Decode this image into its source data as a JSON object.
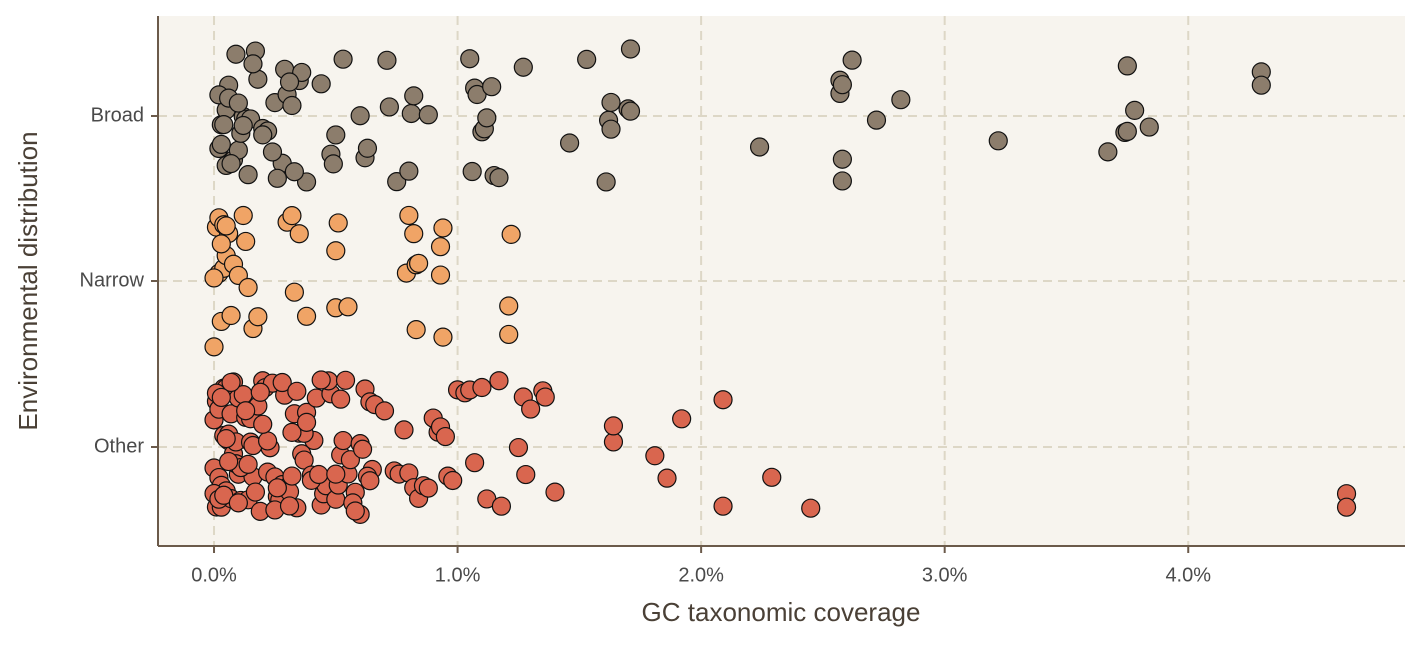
{
  "chart_data": {
    "type": "scatter",
    "x_label": "GC taxonomic coverage",
    "y_label": "Environmental distribution",
    "categories": [
      "Broad",
      "Narrow",
      "Other"
    ],
    "xlim": [
      -0.23,
      4.89
    ],
    "xticks": [
      {
        "value": 0,
        "label": "0.0%"
      },
      {
        "value": 1,
        "label": "1.0%"
      },
      {
        "value": 2,
        "label": "2.0%"
      },
      {
        "value": 3,
        "label": "3.0%"
      },
      {
        "value": 4,
        "label": "4.0%"
      }
    ],
    "grid": true,
    "series": [
      {
        "color": "#8c7d6c",
        "values": [
          0.02,
          0.03,
          0.05,
          0.06,
          0.08,
          0.1,
          0.12,
          0.13,
          0.15,
          0.17,
          0.2,
          0.22,
          0.25,
          0.28,
          0.3,
          0.32,
          0.35,
          0.38,
          0.03,
          0.05,
          0.07,
          0.09,
          0.11,
          0.14,
          0.18,
          0.24,
          0.29,
          0.33,
          0.36,
          0.02,
          0.04,
          0.06,
          0.1,
          0.12,
          0.16,
          0.2,
          0.26,
          0.31,
          0.44,
          0.48,
          0.49,
          0.5,
          0.53,
          0.6,
          0.62,
          0.63,
          0.71,
          0.72,
          0.75,
          0.8,
          0.81,
          0.82,
          0.88,
          1.05,
          1.06,
          1.07,
          1.08,
          1.1,
          1.11,
          1.12,
          1.14,
          1.15,
          1.17,
          1.27,
          1.46,
          1.53,
          1.61,
          1.62,
          1.63,
          1.63,
          1.7,
          1.71,
          1.71,
          2.24,
          2.57,
          2.57,
          2.58,
          2.58,
          2.58,
          2.62,
          2.72,
          2.82,
          3.22,
          3.67,
          3.74,
          3.75,
          3.75,
          3.78,
          3.84,
          4.3,
          4.3
        ]
      },
      {
        "color": "#f0a466",
        "values": [
          0.0,
          0.01,
          0.02,
          0.03,
          0.04,
          0.05,
          0.06,
          0.08,
          0.1,
          0.12,
          0.13,
          0.14,
          0.16,
          0.18,
          0.02,
          0.04,
          0.07,
          0.0,
          0.03,
          0.05,
          0.3,
          0.32,
          0.33,
          0.35,
          0.38,
          0.5,
          0.5,
          0.51,
          0.55,
          0.79,
          0.8,
          0.82,
          0.83,
          0.83,
          0.84,
          0.93,
          0.94,
          0.94,
          0.93,
          1.21,
          1.21,
          1.22
        ]
      },
      {
        "color": "#d9664f",
        "values": [
          0.0,
          0.0,
          0.01,
          0.01,
          0.02,
          0.02,
          0.03,
          0.03,
          0.04,
          0.04,
          0.05,
          0.05,
          0.06,
          0.06,
          0.07,
          0.07,
          0.08,
          0.08,
          0.09,
          0.1,
          0.1,
          0.11,
          0.12,
          0.12,
          0.13,
          0.14,
          0.15,
          0.15,
          0.16,
          0.17,
          0.18,
          0.19,
          0.2,
          0.21,
          0.22,
          0.23,
          0.24,
          0.25,
          0.26,
          0.27,
          0.28,
          0.29,
          0.3,
          0.31,
          0.32,
          0.33,
          0.34,
          0.35,
          0.36,
          0.37,
          0.38,
          0.4,
          0.41,
          0.42,
          0.44,
          0.45,
          0.46,
          0.48,
          0.5,
          0.51,
          0.52,
          0.53,
          0.55,
          0.56,
          0.58,
          0.6,
          0.61,
          0.62,
          0.64,
          0.65,
          0.66,
          0.0,
          0.01,
          0.02,
          0.04,
          0.05,
          0.07,
          0.09,
          0.11,
          0.13,
          0.16,
          0.19,
          0.22,
          0.25,
          0.28,
          0.31,
          0.34,
          0.37,
          0.4,
          0.43,
          0.47,
          0.5,
          0.54,
          0.57,
          0.6,
          0.63,
          0.03,
          0.06,
          0.1,
          0.14,
          0.2,
          0.26,
          0.32,
          0.38,
          0.44,
          0.52,
          0.58,
          0.64,
          0.7,
          0.74,
          0.76,
          0.78,
          0.8,
          0.82,
          0.84,
          0.86,
          0.88,
          0.9,
          0.92,
          0.93,
          0.95,
          0.96,
          0.98,
          1.0,
          1.03,
          1.05,
          1.07,
          1.1,
          1.12,
          1.17,
          1.18,
          1.25,
          1.27,
          1.28,
          1.3,
          1.35,
          1.36,
          1.4,
          1.64,
          1.64,
          1.81,
          1.86,
          1.92,
          2.09,
          2.09,
          2.29,
          2.45,
          4.65,
          4.65
        ]
      }
    ]
  }
}
